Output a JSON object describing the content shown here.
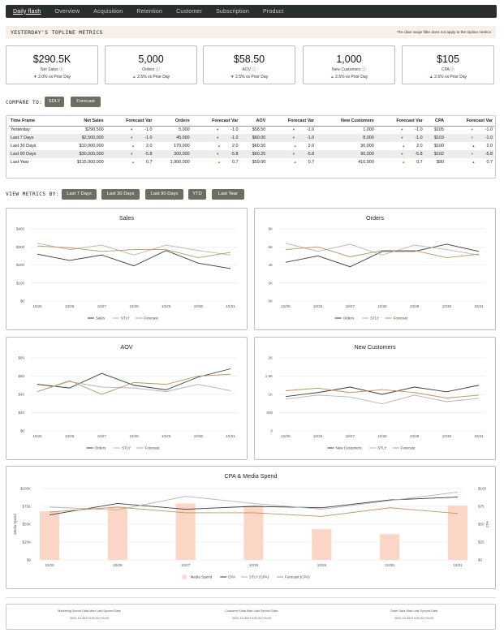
{
  "nav": {
    "tabs": [
      "Daily flash",
      "Overview",
      "Acquisition",
      "Retention",
      "Customer",
      "Subscription",
      "Product"
    ]
  },
  "banner": {
    "title": "YESTERDAY'S TOPLINE METRICS",
    "note": "The date range filter does not apply to the topline metrics"
  },
  "kpis": [
    {
      "value": "$290.5K",
      "label": "Net Sales ⓘ",
      "dir": "down",
      "change": "2.0% vs Prior Day"
    },
    {
      "value": "5,000",
      "label": "Orders ⓘ",
      "dir": "up",
      "change": "2.5% vs Prior Day"
    },
    {
      "value": "$58.50",
      "label": "AOV ⓘ",
      "dir": "down",
      "change": "2.5% vs Prior Day"
    },
    {
      "value": "1,000",
      "label": "New Customers ⓘ",
      "dir": "up",
      "change": "2.5% vs Prior Day"
    },
    {
      "value": "$105",
      "label": "CPA ⓘ",
      "dir": "up-red",
      "change": "2.5% vs Prior Day"
    }
  ],
  "compare": {
    "label": "COMPARE TO:",
    "buttons": [
      "SDLY",
      "Forecast"
    ]
  },
  "table": {
    "headers": [
      "Time Frame",
      "Net Sales",
      "Forecast Var",
      "Orders",
      "Forecast Var",
      "AOV",
      "Forecast Var",
      "New Customers",
      "Forecast Var",
      "CPA",
      "Forecast Var"
    ],
    "rows": [
      [
        "Yesterday",
        "$290,500",
        "-1.0",
        "5,000",
        "-1.0",
        "$58.50",
        "-1.0",
        "1,000",
        "-1.0",
        "$105",
        "-1.0"
      ],
      [
        "Last 7 Days",
        "$2,500,000",
        "-1.0",
        "45,000",
        "-1.0",
        "$60.00",
        "-1.0",
        "8,000",
        "-1.0",
        "$103",
        "-1.0"
      ],
      [
        "Last 30 Days",
        "$10,000,000",
        "2.0",
        "170,000",
        "2.0",
        "$60.50",
        "2.0",
        "30,000",
        "2.0",
        "$100",
        "2.0"
      ],
      [
        "Last 90 Days",
        "$30,000,000",
        "-5.8",
        "300,000",
        "-5.8",
        "$60.25",
        "-5.8",
        "90,000",
        "-5.8",
        "$102",
        "-5.8"
      ],
      [
        "Last Year",
        "$115,000,000",
        "0.7",
        "1,900,000",
        "0.7",
        "$59.00",
        "0.7",
        "410,000",
        "0.7",
        "$90",
        "0.7"
      ]
    ],
    "dirs": [
      [
        "down",
        "down",
        "down",
        "down",
        "down-green"
      ],
      [
        "down",
        "down",
        "down",
        "down",
        "down-green"
      ],
      [
        "up",
        "up",
        "up",
        "up",
        "up-red"
      ],
      [
        "down",
        "down",
        "down",
        "down",
        "down-green"
      ],
      [
        "up",
        "up",
        "up",
        "up",
        "up-red"
      ]
    ]
  },
  "view": {
    "label": "VIEW METRICS BY:",
    "buttons": [
      "Last 7 Days",
      "Last 30 Days",
      "Last 90 Days",
      "YTD",
      "Last Year"
    ]
  },
  "colors": {
    "line1": "#3a3a3a",
    "line2": "#b3b3b3",
    "forecast": "#c4915a",
    "bar": "#fbd5c6",
    "nav": "#2a2f2b",
    "button": "#6b6e63"
  },
  "chart_data": [
    {
      "type": "line",
      "title": "Sales",
      "x": [
        "10/25",
        "10/26",
        "10/27",
        "10/28",
        "10/29",
        "10/30",
        "10/31"
      ],
      "yticks": [
        "$0",
        "$100",
        "$200",
        "$300",
        "$400"
      ],
      "ylim": [
        0,
        400
      ],
      "series": [
        {
          "name": "Sales",
          "values": [
            260,
            225,
            255,
            195,
            280,
            210,
            180
          ]
        },
        {
          "name": "STLY",
          "values": [
            320,
            285,
            310,
            255,
            310,
            280,
            255
          ]
        },
        {
          "name": "Forecast",
          "values": [
            305,
            295,
            275,
            285,
            285,
            240,
            270
          ]
        }
      ]
    },
    {
      "type": "line",
      "title": "Orders",
      "x": [
        "10/25",
        "10/26",
        "10/27",
        "10/28",
        "10/29",
        "10/30",
        "10/31"
      ],
      "yticks": [
        "0K",
        "2K",
        "4K",
        "6K",
        "8K"
      ],
      "ylim": [
        0,
        8
      ],
      "series": [
        {
          "name": "Orders",
          "values": [
            4.3,
            5.0,
            3.8,
            5.5,
            5.5,
            6.3,
            5.5
          ]
        },
        {
          "name": "STLY",
          "values": [
            6.4,
            5.5,
            6.3,
            5.1,
            6.2,
            5.7,
            5.1
          ]
        },
        {
          "name": "Forecast",
          "values": [
            5.7,
            6.0,
            4.9,
            5.6,
            5.6,
            4.8,
            5.2
          ]
        }
      ]
    },
    {
      "type": "line",
      "title": "AOV",
      "x": [
        "10/25",
        "10/26",
        "10/27",
        "10/28",
        "10/29",
        "10/30",
        "10/31"
      ],
      "yticks": [
        "$0",
        "$20",
        "$40",
        "$60",
        "$80"
      ],
      "ylim": [
        0,
        80
      ],
      "series": [
        {
          "name": "Orders",
          "values": [
            51,
            47,
            63,
            50,
            45,
            59,
            68
          ]
        },
        {
          "name": "STLY",
          "values": [
            43,
            54,
            48,
            47,
            43,
            51,
            44
          ]
        },
        {
          "name": "Forecast",
          "values": [
            43,
            55,
            40,
            53,
            51,
            60,
            62
          ]
        }
      ]
    },
    {
      "type": "line",
      "title": "New Customers",
      "x": [
        "10/25",
        "10/26",
        "10/27",
        "10/28",
        "10/29",
        "10/30",
        "10/31"
      ],
      "yticks": [
        "0",
        "500",
        "1K",
        "1.5K",
        "2K"
      ],
      "ylim": [
        0,
        2000
      ],
      "series": [
        {
          "name": "New Customers",
          "values": [
            940,
            1050,
            1200,
            1000,
            1200,
            1070,
            1250
          ]
        },
        {
          "name": "STLY",
          "values": [
            870,
            980,
            930,
            740,
            980,
            800,
            890
          ]
        },
        {
          "name": "Forecast",
          "values": [
            1100,
            1170,
            1050,
            1130,
            1050,
            900,
            980
          ]
        }
      ]
    },
    {
      "type": "bar+line",
      "title": "CPA & Media Spend",
      "x": [
        "10/25",
        "10/26",
        "10/27",
        "10/28",
        "10/29",
        "10/30",
        "10/31"
      ],
      "yticks_left": [
        "$0",
        "$25K",
        "$50K",
        "$75K",
        "$100K"
      ],
      "ylim_left": [
        0,
        100000
      ],
      "yticks_right": [
        "$0",
        "$25",
        "$50",
        "$75",
        "$100"
      ],
      "ylim_right": [
        0,
        100
      ],
      "ylabel_left": "Media Spend",
      "ylabel_right": "CPA",
      "bars": {
        "name": "Media Spend",
        "values": [
          68000,
          73000,
          79000,
          76000,
          43000,
          36000,
          76000
        ]
      },
      "series": [
        {
          "name": "CPA",
          "values": [
            63,
            79,
            71,
            75,
            73,
            84,
            88
          ]
        },
        {
          "name": "STLY (CPA)",
          "values": [
            74,
            70,
            89,
            79,
            71,
            83,
            95
          ]
        },
        {
          "name": "Forecast (CPA)",
          "values": [
            67,
            74,
            66,
            66,
            61,
            73,
            65
          ]
        }
      ]
    }
  ],
  "footer": [
    {
      "label": "Marketing Spend Data Mart Last Synced Date",
      "value": "2022-10-05T13:00:00+00:00"
    },
    {
      "label": "Customer Data Mart Last Synced Date",
      "value": "2022-10-05T13:00:00+00:00"
    },
    {
      "label": "Order Data Mart Last Synced Date",
      "value": "2022-10-05T13:00:00+00:00"
    }
  ]
}
